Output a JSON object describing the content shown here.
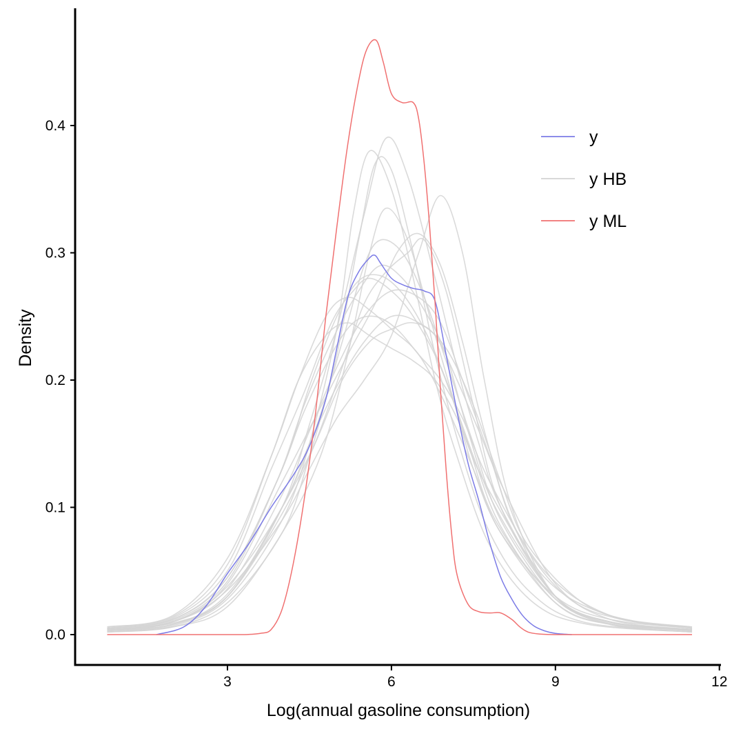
{
  "chart_data": {
    "type": "line",
    "title": "",
    "xlabel": "Log(annual gasoline consumption)",
    "ylabel": "Density",
    "xlim": [
      0.7,
      12
    ],
    "ylim": [
      -0.024,
      0.49
    ],
    "x_ticks": [
      3,
      6,
      9,
      12
    ],
    "x_tick_labels": [
      "3",
      "6",
      "9",
      "12"
    ],
    "y_ticks": [
      0.0,
      0.1,
      0.2,
      0.3,
      0.4
    ],
    "y_tick_labels": [
      "0.0",
      "0.1",
      "0.2",
      "0.3",
      "0.4"
    ],
    "grid": false,
    "legend": {
      "position": "top-right",
      "entries": [
        {
          "label": "y",
          "color": "#7B7BE6"
        },
        {
          "label": "y HB",
          "color": "#D3D3D3"
        },
        {
          "label": "y ML",
          "color": "#F07070"
        }
      ]
    },
    "series": [
      {
        "name": "y ML",
        "color": "#F07070",
        "x": [
          0.8,
          2.0,
          3.0,
          3.3,
          3.6,
          3.8,
          4.0,
          4.2,
          4.4,
          4.6,
          4.8,
          5.0,
          5.2,
          5.4,
          5.55,
          5.72,
          5.85,
          6.0,
          6.2,
          6.4,
          6.5,
          6.6,
          6.7,
          6.8,
          6.9,
          7.0,
          7.1,
          7.2,
          7.4,
          7.6,
          7.8,
          8.0,
          8.2,
          8.35,
          8.5,
          8.7,
          9.0,
          9.5,
          10.5,
          11.5
        ],
        "y": [
          0.0,
          0.0,
          0.0,
          0.0,
          0.001,
          0.004,
          0.02,
          0.055,
          0.105,
          0.17,
          0.25,
          0.32,
          0.385,
          0.435,
          0.46,
          0.467,
          0.45,
          0.425,
          0.418,
          0.418,
          0.405,
          0.37,
          0.32,
          0.26,
          0.19,
          0.13,
          0.08,
          0.047,
          0.024,
          0.018,
          0.017,
          0.017,
          0.012,
          0.006,
          0.002,
          0.0005,
          0.0,
          0.0,
          0.0,
          0.0
        ]
      },
      {
        "name": "y",
        "color": "#7B7BE6",
        "x": [
          1.7,
          2.2,
          2.6,
          3.0,
          3.4,
          3.8,
          4.2,
          4.5,
          4.8,
          5.0,
          5.2,
          5.4,
          5.6,
          5.7,
          5.8,
          6.0,
          6.2,
          6.4,
          6.6,
          6.8,
          7.0,
          7.2,
          7.4,
          7.6,
          7.8,
          8.0,
          8.2,
          8.4,
          8.6,
          8.8,
          9.0,
          9.3
        ],
        "y": [
          0.0,
          0.006,
          0.022,
          0.048,
          0.072,
          0.1,
          0.125,
          0.148,
          0.185,
          0.225,
          0.265,
          0.285,
          0.296,
          0.298,
          0.292,
          0.28,
          0.275,
          0.272,
          0.27,
          0.262,
          0.22,
          0.175,
          0.135,
          0.105,
          0.072,
          0.045,
          0.028,
          0.015,
          0.007,
          0.003,
          0.001,
          0.0
        ]
      },
      {
        "name": "y HB",
        "color": "#D3D3D3",
        "x": [
          0.8,
          2.0,
          3.0,
          4.0,
          4.5,
          5.0,
          5.4,
          5.8,
          6.2,
          6.6,
          7.0,
          7.5,
          8.0,
          9.0,
          10.0,
          11.5
        ],
        "y": [
          0.005,
          0.012,
          0.045,
          0.13,
          0.195,
          0.25,
          0.278,
          0.282,
          0.268,
          0.24,
          0.2,
          0.14,
          0.085,
          0.025,
          0.008,
          0.004
        ]
      },
      {
        "name": "y HB",
        "color": "#D3D3D3",
        "x": [
          0.8,
          2.0,
          3.0,
          4.0,
          4.5,
          5.0,
          5.5,
          5.9,
          6.3,
          6.8,
          7.2,
          7.6,
          8.0,
          9.0,
          10.0,
          11.5
        ],
        "y": [
          0.003,
          0.008,
          0.03,
          0.1,
          0.165,
          0.24,
          0.33,
          0.39,
          0.36,
          0.28,
          0.21,
          0.15,
          0.1,
          0.03,
          0.008,
          0.002
        ]
      },
      {
        "name": "y HB",
        "color": "#D3D3D3",
        "x": [
          0.8,
          2.0,
          3.0,
          4.0,
          4.5,
          5.0,
          5.5,
          6.0,
          6.5,
          6.9,
          7.3,
          7.7,
          8.2,
          9.0,
          10.0,
          11.5
        ],
        "y": [
          0.004,
          0.01,
          0.035,
          0.09,
          0.13,
          0.17,
          0.2,
          0.235,
          0.3,
          0.345,
          0.3,
          0.2,
          0.1,
          0.03,
          0.01,
          0.003
        ]
      },
      {
        "name": "y HB",
        "color": "#D3D3D3",
        "x": [
          0.8,
          2.0,
          3.0,
          3.8,
          4.3,
          4.8,
          5.2,
          5.6,
          6.0,
          6.5,
          7.0,
          7.5,
          8.0,
          9.0,
          10.0,
          11.5
        ],
        "y": [
          0.006,
          0.015,
          0.06,
          0.14,
          0.2,
          0.25,
          0.265,
          0.255,
          0.24,
          0.22,
          0.18,
          0.13,
          0.08,
          0.03,
          0.012,
          0.005
        ]
      },
      {
        "name": "y HB",
        "color": "#D3D3D3",
        "x": [
          0.8,
          2.0,
          3.0,
          4.0,
          4.5,
          5.0,
          5.4,
          5.7,
          6.0,
          6.4,
          6.8,
          7.3,
          7.8,
          8.5,
          9.5,
          11.5
        ],
        "y": [
          0.002,
          0.006,
          0.025,
          0.08,
          0.14,
          0.22,
          0.31,
          0.37,
          0.365,
          0.3,
          0.22,
          0.14,
          0.08,
          0.035,
          0.01,
          0.002
        ]
      },
      {
        "name": "y HB",
        "color": "#D3D3D3",
        "x": [
          0.8,
          2.0,
          3.0,
          4.0,
          4.6,
          5.1,
          5.6,
          6.0,
          6.4,
          6.8,
          7.2,
          7.6,
          8.1,
          9.0,
          10.0,
          11.5
        ],
        "y": [
          0.004,
          0.009,
          0.03,
          0.1,
          0.15,
          0.2,
          0.23,
          0.24,
          0.245,
          0.235,
          0.2,
          0.16,
          0.11,
          0.04,
          0.012,
          0.004
        ]
      },
      {
        "name": "y HB",
        "color": "#D3D3D3",
        "x": [
          0.8,
          2.0,
          3.0,
          4.0,
          4.6,
          5.2,
          5.7,
          6.1,
          6.5,
          6.9,
          7.3,
          7.7,
          8.2,
          9.0,
          10.0,
          11.5
        ],
        "y": [
          0.003,
          0.01,
          0.04,
          0.12,
          0.17,
          0.22,
          0.26,
          0.3,
          0.315,
          0.29,
          0.23,
          0.16,
          0.09,
          0.03,
          0.01,
          0.003
        ]
      },
      {
        "name": "y HB",
        "color": "#D3D3D3",
        "x": [
          0.8,
          2.0,
          3.0,
          3.8,
          4.4,
          4.9,
          5.3,
          5.6,
          6.0,
          6.4,
          6.9,
          7.4,
          7.9,
          9.0,
          10.0,
          11.5
        ],
        "y": [
          0.005,
          0.013,
          0.05,
          0.13,
          0.19,
          0.245,
          0.27,
          0.28,
          0.27,
          0.25,
          0.21,
          0.15,
          0.09,
          0.028,
          0.01,
          0.004
        ]
      },
      {
        "name": "y HB",
        "color": "#D3D3D3",
        "x": [
          0.8,
          2.0,
          3.0,
          4.0,
          4.5,
          5.0,
          5.3,
          5.6,
          6.0,
          6.4,
          6.8,
          7.2,
          7.8,
          8.6,
          9.6,
          11.5
        ],
        "y": [
          0.002,
          0.007,
          0.028,
          0.09,
          0.15,
          0.24,
          0.33,
          0.38,
          0.35,
          0.28,
          0.2,
          0.14,
          0.07,
          0.025,
          0.008,
          0.002
        ]
      },
      {
        "name": "y HB",
        "color": "#D3D3D3",
        "x": [
          0.8,
          2.0,
          3.0,
          4.0,
          4.5,
          5.0,
          5.5,
          6.0,
          6.5,
          6.9,
          7.3,
          7.8,
          8.3,
          9.2,
          10.2,
          11.5
        ],
        "y": [
          0.004,
          0.01,
          0.036,
          0.11,
          0.16,
          0.21,
          0.25,
          0.27,
          0.265,
          0.245,
          0.2,
          0.14,
          0.08,
          0.03,
          0.012,
          0.006
        ]
      },
      {
        "name": "y HB",
        "color": "#D3D3D3",
        "x": [
          0.8,
          2.0,
          3.0,
          3.9,
          4.4,
          4.9,
          5.3,
          5.7,
          6.1,
          6.5,
          6.9,
          7.3,
          7.8,
          8.8,
          10.0,
          11.5
        ],
        "y": [
          0.005,
          0.012,
          0.045,
          0.12,
          0.175,
          0.22,
          0.245,
          0.25,
          0.24,
          0.22,
          0.2,
          0.17,
          0.12,
          0.05,
          0.015,
          0.005
        ]
      },
      {
        "name": "y HB",
        "color": "#D3D3D3",
        "x": [
          0.8,
          2.0,
          3.0,
          4.0,
          4.7,
          5.2,
          5.6,
          5.9,
          6.3,
          6.7,
          7.1,
          7.5,
          8.0,
          9.0,
          10.0,
          11.5
        ],
        "y": [
          0.002,
          0.006,
          0.022,
          0.08,
          0.14,
          0.22,
          0.3,
          0.335,
          0.31,
          0.25,
          0.19,
          0.13,
          0.08,
          0.025,
          0.008,
          0.002
        ]
      },
      {
        "name": "y HB",
        "color": "#D3D3D3",
        "x": [
          0.8,
          2.0,
          3.0,
          3.8,
          4.3,
          4.8,
          5.2,
          5.6,
          6.0,
          6.4,
          6.8,
          7.2,
          7.7,
          8.8,
          10.0,
          11.5
        ],
        "y": [
          0.006,
          0.014,
          0.055,
          0.14,
          0.2,
          0.235,
          0.245,
          0.235,
          0.225,
          0.215,
          0.2,
          0.17,
          0.12,
          0.045,
          0.015,
          0.006
        ]
      },
      {
        "name": "y HB",
        "color": "#D3D3D3",
        "x": [
          0.8,
          2.0,
          3.0,
          4.0,
          4.6,
          5.1,
          5.5,
          5.9,
          6.3,
          6.6,
          7.0,
          7.5,
          8.0,
          9.0,
          10.0,
          11.5
        ],
        "y": [
          0.003,
          0.008,
          0.03,
          0.095,
          0.15,
          0.21,
          0.26,
          0.285,
          0.3,
          0.31,
          0.27,
          0.18,
          0.1,
          0.03,
          0.01,
          0.003
        ]
      },
      {
        "name": "y HB",
        "color": "#D3D3D3",
        "x": [
          0.8,
          2.0,
          3.0,
          4.0,
          4.5,
          5.0,
          5.5,
          6.0,
          6.5,
          7.0,
          7.5,
          8.0,
          8.5,
          9.5,
          10.5,
          11.5
        ],
        "y": [
          0.004,
          0.01,
          0.038,
          0.1,
          0.15,
          0.195,
          0.23,
          0.25,
          0.245,
          0.225,
          0.18,
          0.12,
          0.07,
          0.025,
          0.01,
          0.006
        ]
      },
      {
        "name": "y HB",
        "color": "#D3D3D3",
        "x": [
          0.8,
          2.0,
          3.0,
          3.9,
          4.4,
          4.9,
          5.4,
          5.8,
          6.2,
          6.6,
          7.0,
          7.4,
          7.9,
          9.0,
          10.0,
          11.5
        ],
        "y": [
          0.004,
          0.011,
          0.042,
          0.12,
          0.18,
          0.23,
          0.27,
          0.29,
          0.28,
          0.255,
          0.22,
          0.16,
          0.1,
          0.03,
          0.01,
          0.004
        ]
      },
      {
        "name": "y HB",
        "color": "#D3D3D3",
        "x": [
          0.8,
          2.0,
          3.0,
          4.0,
          4.6,
          5.1,
          5.5,
          5.8,
          6.2,
          6.6,
          7.0,
          7.5,
          8.0,
          9.0,
          10.0,
          11.5
        ],
        "y": [
          0.003,
          0.008,
          0.032,
          0.1,
          0.16,
          0.23,
          0.29,
          0.31,
          0.3,
          0.265,
          0.215,
          0.15,
          0.09,
          0.028,
          0.009,
          0.003
        ]
      }
    ]
  }
}
